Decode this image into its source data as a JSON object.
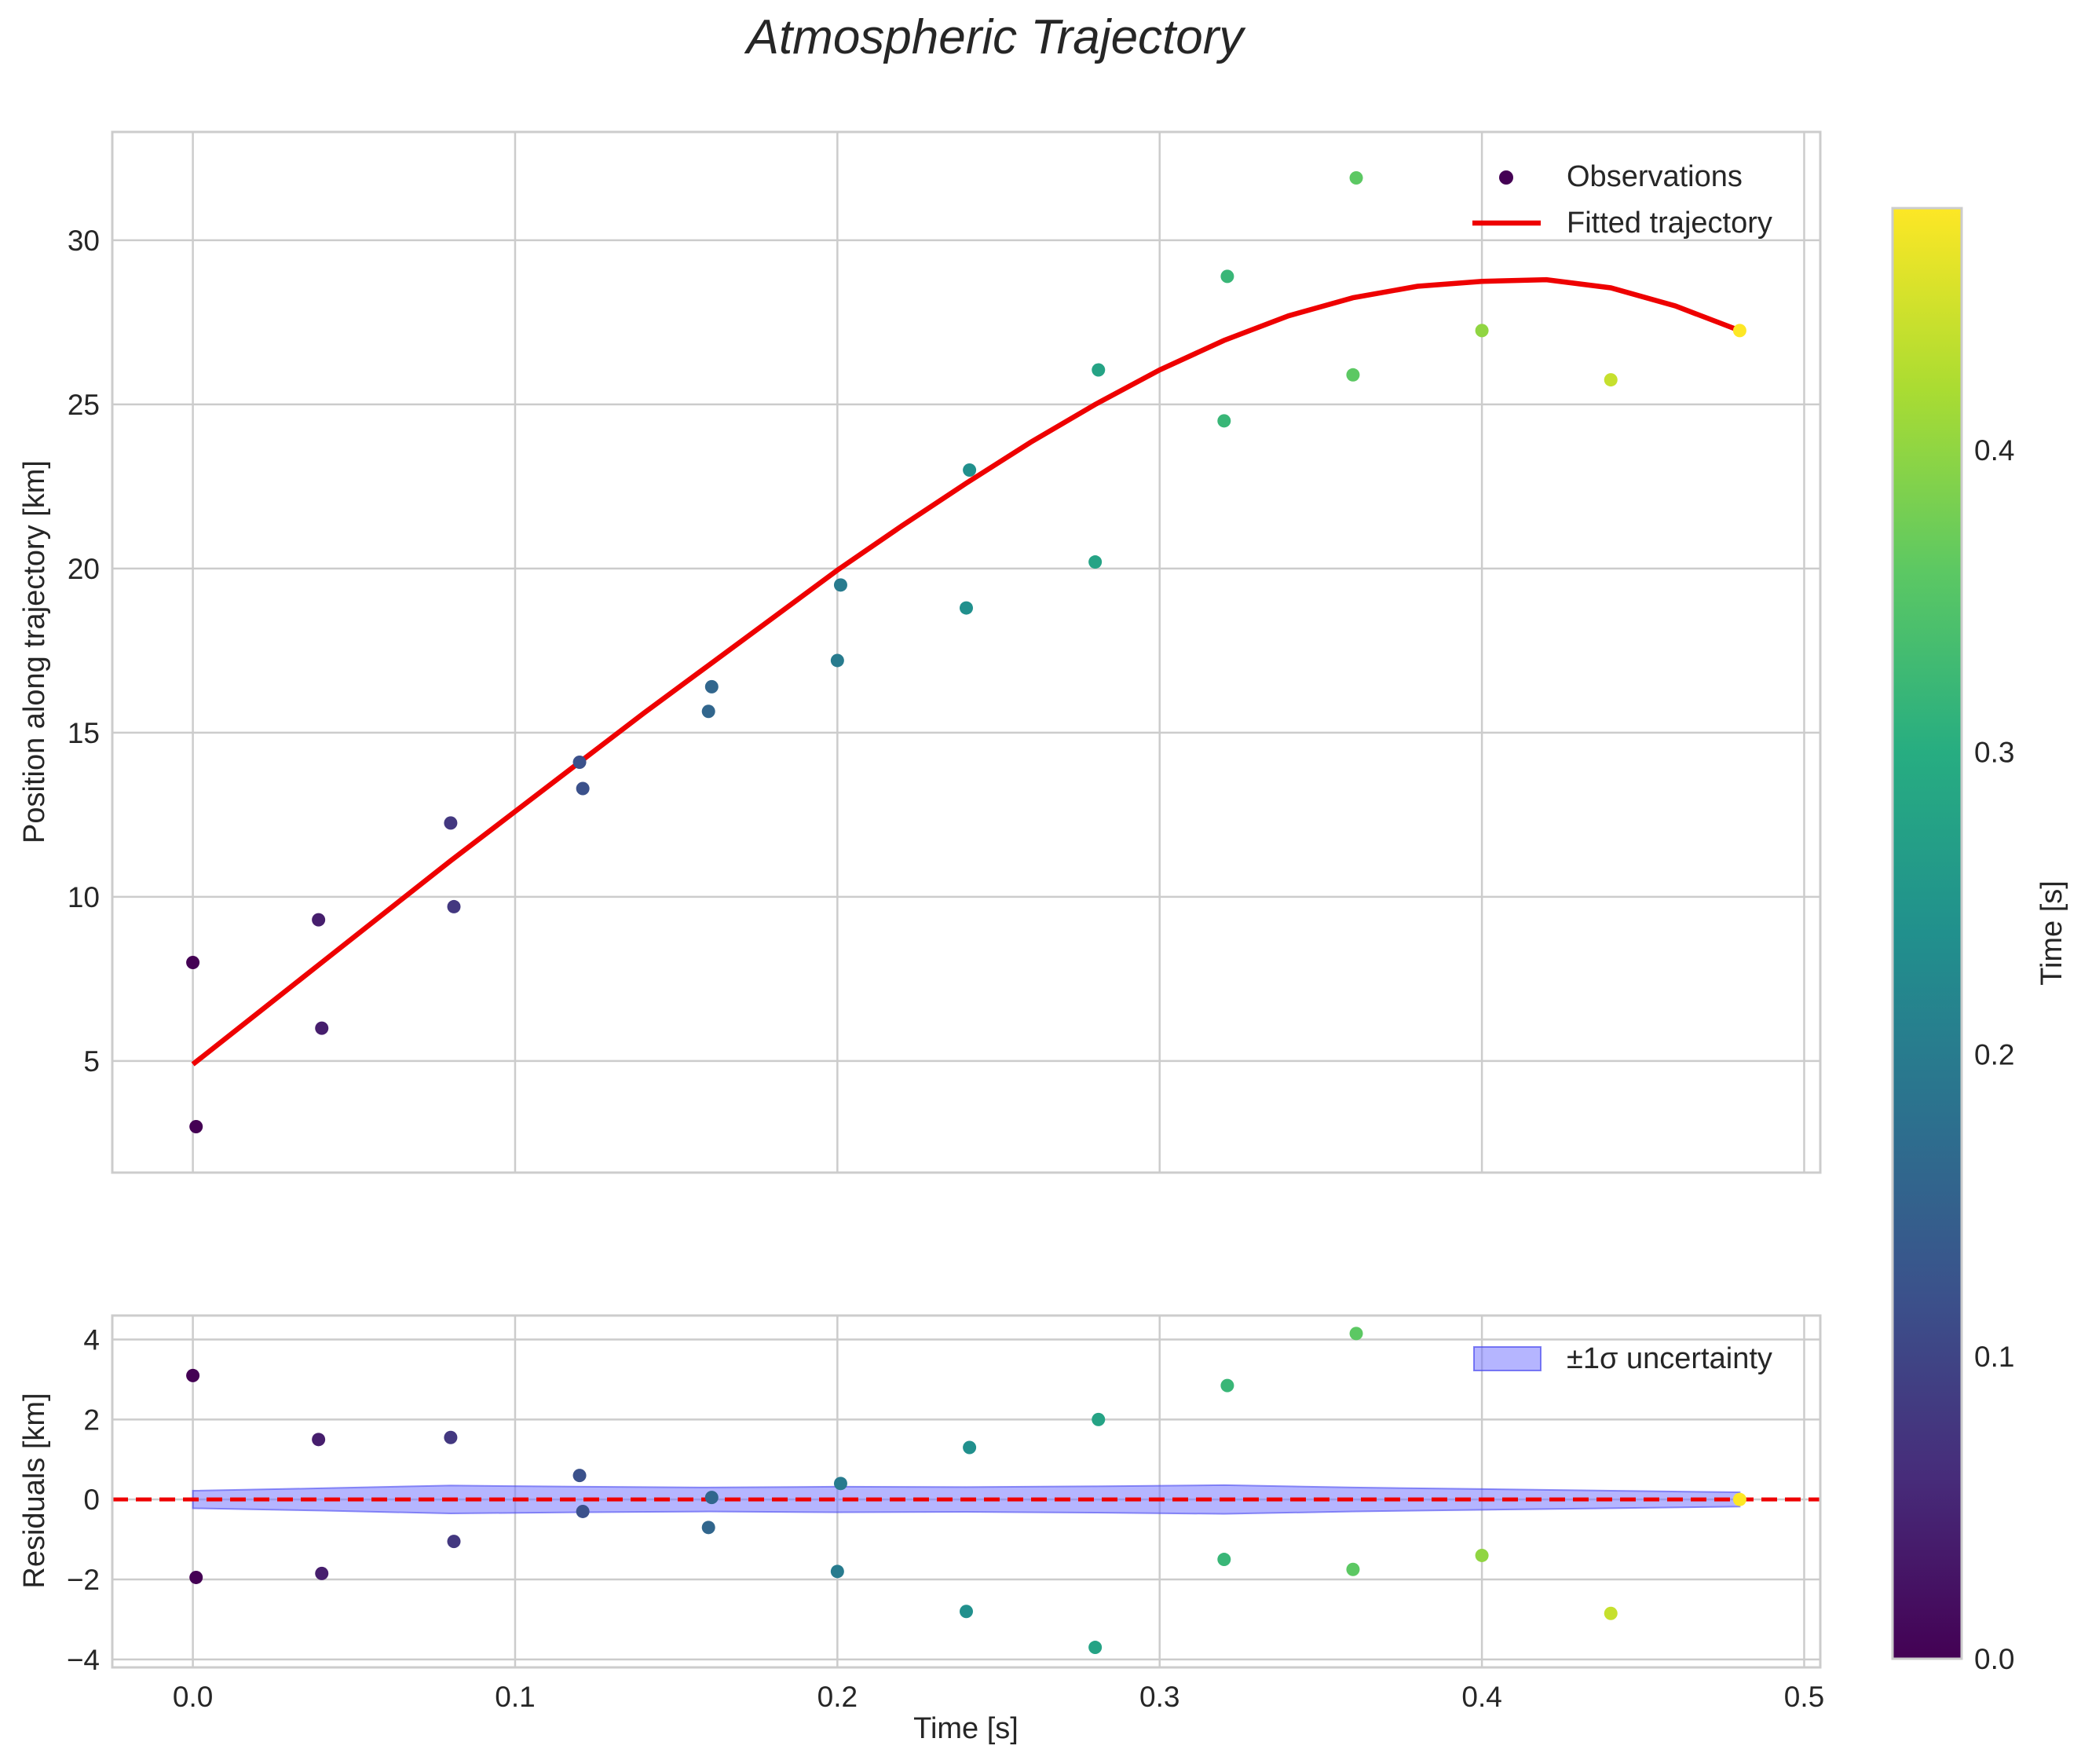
{
  "chart_data": [
    {
      "type": "scatter",
      "title": "Atmospheric Trajectory",
      "xlabel": "",
      "ylabel": "Position along trajectory [km]",
      "xlim": [
        -0.025,
        0.505
      ],
      "ylim": [
        1.6,
        33.3
      ],
      "grid": true,
      "xticks": [
        0.0,
        0.1,
        0.2,
        0.3,
        0.4,
        0.5
      ],
      "yticks": [
        5,
        10,
        15,
        20,
        25,
        30
      ],
      "legend": {
        "position": "top-right",
        "entries": [
          "Observations",
          "Fitted trajectory"
        ]
      },
      "series": [
        {
          "name": "Observations",
          "kind": "scatter",
          "colormap": "viridis",
          "color_by": "time",
          "points": [
            {
              "t": 0.0,
              "x": 0.0,
              "y": 8.0
            },
            {
              "t": 0.0,
              "x": 0.001,
              "y": 3.0
            },
            {
              "t": 0.04,
              "x": 0.039,
              "y": 9.3
            },
            {
              "t": 0.04,
              "x": 0.04,
              "y": 6.0
            },
            {
              "t": 0.08,
              "x": 0.08,
              "y": 12.25
            },
            {
              "t": 0.08,
              "x": 0.081,
              "y": 9.7
            },
            {
              "t": 0.12,
              "x": 0.12,
              "y": 14.1
            },
            {
              "t": 0.12,
              "x": 0.121,
              "y": 13.3
            },
            {
              "t": 0.16,
              "x": 0.161,
              "y": 16.4
            },
            {
              "t": 0.16,
              "x": 0.16,
              "y": 15.65
            },
            {
              "t": 0.2,
              "x": 0.201,
              "y": 19.5
            },
            {
              "t": 0.2,
              "x": 0.2,
              "y": 17.2
            },
            {
              "t": 0.24,
              "x": 0.241,
              "y": 23.0
            },
            {
              "t": 0.24,
              "x": 0.24,
              "y": 18.8
            },
            {
              "t": 0.28,
              "x": 0.281,
              "y": 26.05
            },
            {
              "t": 0.28,
              "x": 0.28,
              "y": 20.2
            },
            {
              "t": 0.32,
              "x": 0.321,
              "y": 28.9
            },
            {
              "t": 0.32,
              "x": 0.32,
              "y": 24.5
            },
            {
              "t": 0.36,
              "x": 0.361,
              "y": 31.9
            },
            {
              "t": 0.36,
              "x": 0.36,
              "y": 25.9
            },
            {
              "t": 0.4,
              "x": 0.4,
              "y": 27.25
            },
            {
              "t": 0.44,
              "x": 0.44,
              "y": 25.75
            },
            {
              "t": 0.48,
              "x": 0.48,
              "y": 27.25
            }
          ]
        },
        {
          "name": "Fitted trajectory",
          "kind": "line",
          "color": "#ee0000",
          "x": [
            0.0,
            0.02,
            0.04,
            0.06,
            0.08,
            0.1,
            0.12,
            0.14,
            0.16,
            0.18,
            0.2,
            0.22,
            0.24,
            0.26,
            0.28,
            0.3,
            0.32,
            0.34,
            0.36,
            0.38,
            0.4,
            0.42,
            0.44,
            0.46,
            0.48
          ],
          "y": [
            4.9,
            6.45,
            8.0,
            9.55,
            11.1,
            12.6,
            14.1,
            15.6,
            17.05,
            18.5,
            19.95,
            21.3,
            22.6,
            23.85,
            25.0,
            26.05,
            26.95,
            27.7,
            28.25,
            28.6,
            28.75,
            28.8,
            28.55,
            28.0,
            27.25
          ]
        }
      ]
    },
    {
      "type": "scatter",
      "title": "",
      "xlabel": "Time [s]",
      "ylabel": "Residuals [km]",
      "xlim": [
        -0.025,
        0.505
      ],
      "ylim": [
        -4.2,
        4.6
      ],
      "grid": true,
      "xticks": [
        0.0,
        0.1,
        0.2,
        0.3,
        0.4,
        0.5
      ],
      "xtick_labels": [
        "0.0",
        "0.1",
        "0.2",
        "0.3",
        "0.4",
        "0.5"
      ],
      "yticks": [
        -4,
        -2,
        0,
        2,
        4
      ],
      "ytick_labels": [
        "−4",
        "−2",
        "0",
        "2",
        "4"
      ],
      "legend": {
        "position": "top-right",
        "entries": [
          "±1σ uncertainty"
        ]
      },
      "zero_line": {
        "y": 0,
        "color": "#ee0000",
        "style": "dashed"
      },
      "band": {
        "name": "±1σ uncertainty",
        "color": "#6b6bff",
        "x": [
          0.0,
          0.04,
          0.08,
          0.12,
          0.16,
          0.2,
          0.24,
          0.28,
          0.32,
          0.36,
          0.4,
          0.44,
          0.48
        ],
        "sigma": [
          0.22,
          0.28,
          0.35,
          0.32,
          0.3,
          0.32,
          0.31,
          0.33,
          0.36,
          0.3,
          0.26,
          0.22,
          0.18
        ]
      },
      "residuals": [
        {
          "t": 0.0,
          "x": 0.0,
          "y": 3.1
        },
        {
          "t": 0.0,
          "x": 0.001,
          "y": -1.95
        },
        {
          "t": 0.04,
          "x": 0.039,
          "y": 1.5
        },
        {
          "t": 0.04,
          "x": 0.04,
          "y": -1.85
        },
        {
          "t": 0.08,
          "x": 0.08,
          "y": 1.55
        },
        {
          "t": 0.08,
          "x": 0.081,
          "y": -1.05
        },
        {
          "t": 0.12,
          "x": 0.12,
          "y": 0.6
        },
        {
          "t": 0.12,
          "x": 0.121,
          "y": -0.3
        },
        {
          "t": 0.16,
          "x": 0.161,
          "y": 0.05
        },
        {
          "t": 0.16,
          "x": 0.16,
          "y": -0.7
        },
        {
          "t": 0.2,
          "x": 0.201,
          "y": 0.4
        },
        {
          "t": 0.2,
          "x": 0.2,
          "y": -1.8
        },
        {
          "t": 0.24,
          "x": 0.241,
          "y": 1.3
        },
        {
          "t": 0.24,
          "x": 0.24,
          "y": -2.8
        },
        {
          "t": 0.28,
          "x": 0.281,
          "y": 2.0
        },
        {
          "t": 0.28,
          "x": 0.28,
          "y": -3.7
        },
        {
          "t": 0.32,
          "x": 0.321,
          "y": 2.85
        },
        {
          "t": 0.32,
          "x": 0.32,
          "y": -1.5
        },
        {
          "t": 0.36,
          "x": 0.361,
          "y": 4.15
        },
        {
          "t": 0.36,
          "x": 0.36,
          "y": -1.75
        },
        {
          "t": 0.4,
          "x": 0.4,
          "y": -1.4
        },
        {
          "t": 0.44,
          "x": 0.44,
          "y": -2.85
        },
        {
          "t": 0.48,
          "x": 0.48,
          "y": 0.0
        }
      ]
    }
  ],
  "colorbar": {
    "label": "Time [s]",
    "colormap": "viridis",
    "range": [
      0.0,
      0.48
    ],
    "ticks": [
      0.0,
      0.1,
      0.2,
      0.3,
      0.4
    ],
    "tick_labels": [
      "0.0",
      "0.1",
      "0.2",
      "0.3",
      "0.4"
    ]
  },
  "colors": {
    "fit_line": "#ee0000",
    "zero_line": "#ee0000",
    "band_fill": "#6b6bff",
    "grid": "#cccccc",
    "axes_edge": "#cccccc"
  }
}
